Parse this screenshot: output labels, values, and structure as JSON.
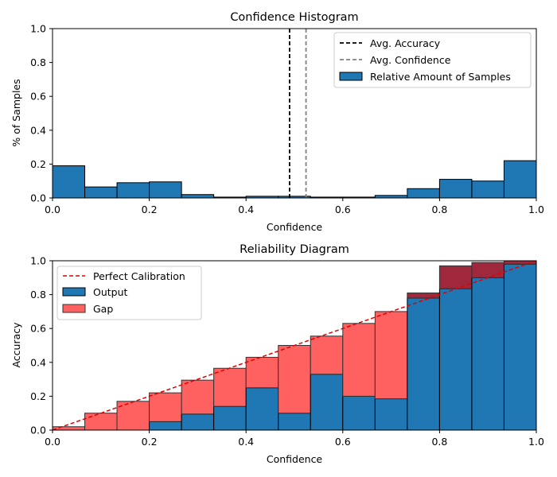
{
  "chart_data": [
    {
      "type": "bar",
      "title": "Confidence Histogram",
      "xlabel": "Confidence",
      "ylabel": "% of Samples",
      "xlim": [
        0.0,
        1.0
      ],
      "ylim": [
        0.0,
        1.0
      ],
      "xticks": [
        "0.0",
        "0.2",
        "0.4",
        "0.6",
        "0.8",
        "1.0"
      ],
      "yticks": [
        "0.0",
        "0.2",
        "0.4",
        "0.6",
        "0.8",
        "1.0"
      ],
      "bin_edges": [
        0.0,
        0.0667,
        0.1333,
        0.2,
        0.2667,
        0.3333,
        0.4,
        0.4667,
        0.5333,
        0.6,
        0.6667,
        0.7333,
        0.8,
        0.8667,
        0.9333,
        1.0
      ],
      "values": [
        0.19,
        0.065,
        0.09,
        0.095,
        0.02,
        0.005,
        0.01,
        0.01,
        0.005,
        0.005,
        0.015,
        0.055,
        0.11,
        0.1,
        0.22
      ],
      "avg_accuracy": 0.49,
      "avg_confidence": 0.524,
      "legend": {
        "position": "top-right",
        "entries": [
          "Avg. Accuracy",
          "Avg. Confidence",
          "Relative Amount of Samples"
        ]
      },
      "colors": {
        "bar": "#1f77b4",
        "accuracy_line": "#000000",
        "confidence_line": "#808080"
      }
    },
    {
      "type": "bar",
      "title": "Reliability Diagram",
      "xlabel": "Confidence",
      "ylabel": "Accuracy",
      "xlim": [
        0.0,
        1.0
      ],
      "ylim": [
        0.0,
        1.0
      ],
      "xticks": [
        "0.0",
        "0.2",
        "0.4",
        "0.6",
        "0.8",
        "1.0"
      ],
      "yticks": [
        "0.0",
        "0.2",
        "0.4",
        "0.6",
        "0.8",
        "1.0"
      ],
      "bin_edges": [
        0.0,
        0.0667,
        0.1333,
        0.2,
        0.2667,
        0.3333,
        0.4,
        0.4667,
        0.5333,
        0.6,
        0.6667,
        0.7333,
        0.8,
        0.8667,
        0.9333,
        1.0
      ],
      "series": [
        {
          "name": "Output",
          "values": [
            0.0,
            0.0,
            0.0,
            0.05,
            0.095,
            0.14,
            0.25,
            0.1,
            0.33,
            0.2,
            0.185,
            0.78,
            0.835,
            0.9,
            0.98
          ]
        },
        {
          "name": "Gap",
          "confidence": [
            0.02,
            0.1,
            0.17,
            0.22,
            0.295,
            0.365,
            0.43,
            0.5,
            0.555,
            0.63,
            0.7,
            0.81,
            0.97,
            0.99,
            1.0
          ]
        }
      ],
      "perfect_calibration": [
        [
          0.0,
          0.0
        ],
        [
          1.0,
          1.0
        ]
      ],
      "legend": {
        "position": "top-left",
        "entries": [
          "Perfect Calibration",
          "Output",
          "Gap"
        ]
      },
      "colors": {
        "output": "#1f77b4",
        "gap_under": "#ff6060",
        "gap_over": "#a0283c",
        "diagonal": "#e00000"
      }
    }
  ]
}
